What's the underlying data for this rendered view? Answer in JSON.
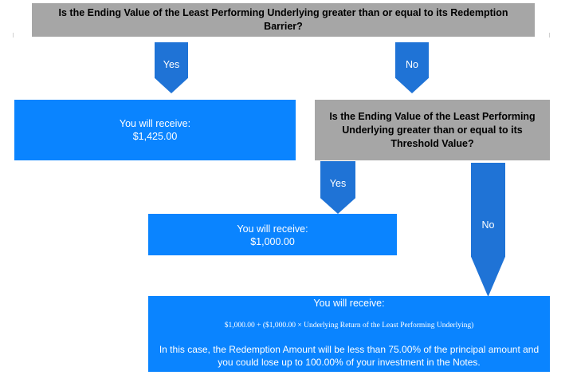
{
  "question1": "Is the Ending Value of the Least Performing Underlying greater than or equal to its Redemption Barrier?",
  "arrow1_yes": "Yes",
  "arrow1_no": "No",
  "result1": {
    "line1": "You will receive:",
    "line2": "$1,425.00"
  },
  "question2": "Is the Ending Value of the Least Performing Underlying greater than or equal to its Threshold Value?",
  "arrow2_yes": "Yes",
  "arrow2_no": "No",
  "result2": {
    "line1": "You will receive:",
    "line2": "$1,000.00"
  },
  "result3": {
    "line1": "You will receive:",
    "formula": "$1,000.00 + ($1,000.00 × Underlying Return of the Least Performing Underlying)",
    "note": "In this case, the Redemption Amount will be less than 75.00% of the principal amount and you could lose up to 100.00% of your investment in the Notes."
  },
  "colors": {
    "gray_box": "#a6a6a6",
    "blue_box": "#0a84ff",
    "arrow": "#1f73d6"
  }
}
